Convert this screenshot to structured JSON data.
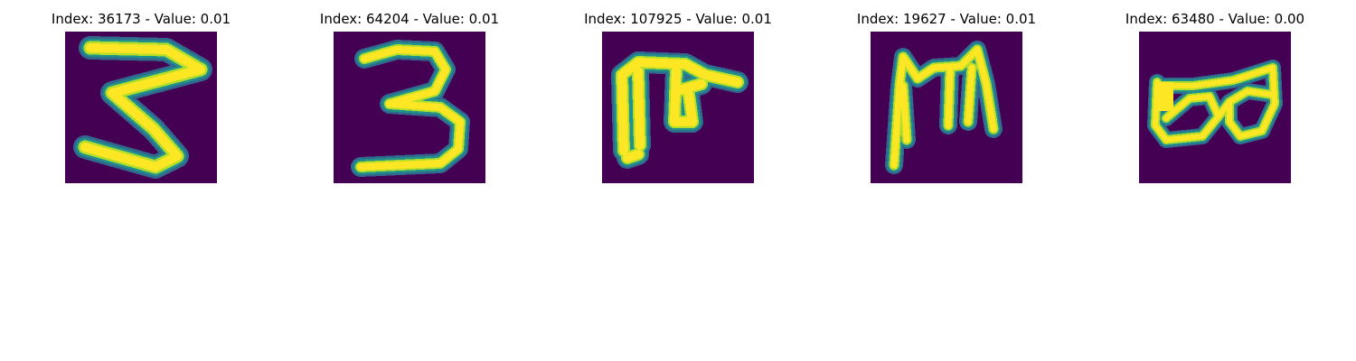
{
  "colors": {
    "background": "#440154",
    "stroke_core": "#fde725",
    "stroke_mid": "#b5de2b",
    "stroke_edge": "#21918c",
    "stroke_outer": "#31688e"
  },
  "panels": [
    {
      "title": "Index: 36173 - Value: 0.01",
      "depicts": "digit-3-flat-top"
    },
    {
      "title": "Index: 64204 - Value: 0.01",
      "depicts": "digit-3"
    },
    {
      "title": "Index: 107925 - Value: 0.01",
      "depicts": "letter-glyph"
    },
    {
      "title": "Index: 19627 - Value: 0.01",
      "depicts": "letter-m"
    },
    {
      "title": "Index: 63480 - Value: 0.00",
      "depicts": "glyph-loops"
    }
  ]
}
